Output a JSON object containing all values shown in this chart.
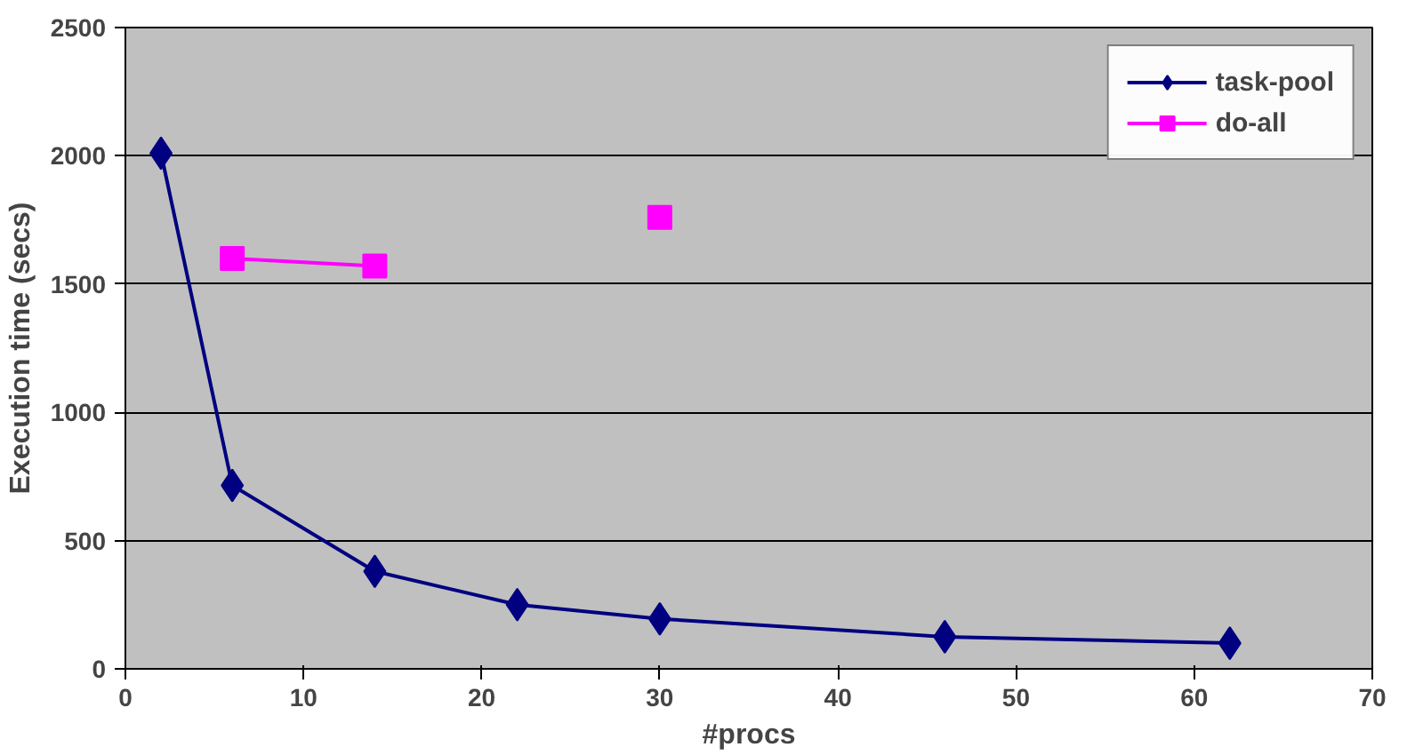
{
  "chart_data": {
    "type": "line",
    "xlabel": "#procs",
    "ylabel": "Execution time (secs)",
    "xlim": [
      0,
      70
    ],
    "xticks": [
      0,
      10,
      20,
      30,
      40,
      50,
      60,
      70
    ],
    "ylim": [
      0,
      2500
    ],
    "yticks": [
      0,
      500,
      1000,
      1500,
      2000,
      2500
    ],
    "grid": "y",
    "legend": "top right",
    "series": [
      {
        "name": "task-pool",
        "color": "#000080",
        "marker": "diamond",
        "x": [
          2,
          6,
          14,
          22,
          30,
          46,
          62
        ],
        "values": [
          2010,
          715,
          380,
          250,
          195,
          125,
          100
        ]
      },
      {
        "name": "do-all",
        "color": "#ff00ff",
        "marker": "square",
        "x": [
          6,
          14,
          22,
          30
        ],
        "values": [
          1600,
          1570,
          null,
          1760
        ]
      }
    ]
  }
}
